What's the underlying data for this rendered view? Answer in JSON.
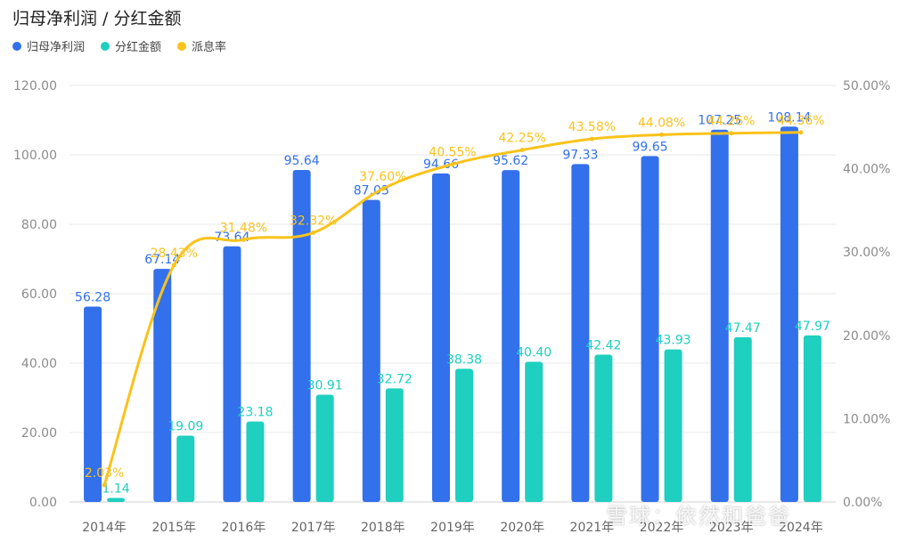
{
  "title": "归母净利润 / 分红金额",
  "watermark": "雪球：依然和爸爸",
  "colors": {
    "profit": "#3370eb",
    "dividend": "#1fcfbf",
    "payout": "#fac31c",
    "grid": "#e8e8e8",
    "axis_text": "#8c8c8c"
  },
  "chart_data": {
    "type": "bar",
    "categories": [
      "2014年",
      "2015年",
      "2016年",
      "2017年",
      "2018年",
      "2019年",
      "2020年",
      "2021年",
      "2022年",
      "2023年",
      "2024年"
    ],
    "series": [
      {
        "name": "归母净利润",
        "type": "bar",
        "axis": "left",
        "values": [
          56.28,
          67.14,
          73.64,
          95.64,
          87.03,
          94.66,
          95.62,
          97.33,
          99.65,
          107.25,
          108.14
        ],
        "labels": [
          "56.28",
          "67.14",
          "73.64",
          "95.64",
          "87.03",
          "94.66",
          "95.62",
          "97.33",
          "99.65",
          "107.25",
          "108.14"
        ]
      },
      {
        "name": "分红金额",
        "type": "bar",
        "axis": "left",
        "values": [
          1.14,
          19.09,
          23.18,
          30.91,
          32.72,
          38.38,
          40.4,
          42.42,
          43.93,
          47.47,
          47.97
        ],
        "labels": [
          "1.14",
          "19.09",
          "23.18",
          "30.91",
          "32.72",
          "38.38",
          "40.40",
          "42.42",
          "43.93",
          "47.47",
          "47.97"
        ]
      },
      {
        "name": "派息率",
        "type": "line",
        "axis": "right",
        "values": [
          2.03,
          28.43,
          31.48,
          32.32,
          37.6,
          40.55,
          42.25,
          43.58,
          44.08,
          44.26,
          44.36
        ],
        "labels": [
          "2.03%",
          "28.43%",
          "31.48%",
          "32.32%",
          "37.60%",
          "40.55%",
          "42.25%",
          "43.58%",
          "44.08%",
          "44.26%",
          "44.36%"
        ]
      }
    ],
    "y_left": {
      "min": 0,
      "max": 120,
      "ticks": [
        "0.00",
        "20.00",
        "40.00",
        "60.00",
        "80.00",
        "100.00",
        "120.00"
      ]
    },
    "y_right": {
      "min": 0,
      "max": 50,
      "ticks": [
        "0.00%",
        "10.00%",
        "20.00%",
        "30.00%",
        "40.00%",
        "50.00%"
      ]
    },
    "grid": true,
    "legend_position": "top-left"
  }
}
